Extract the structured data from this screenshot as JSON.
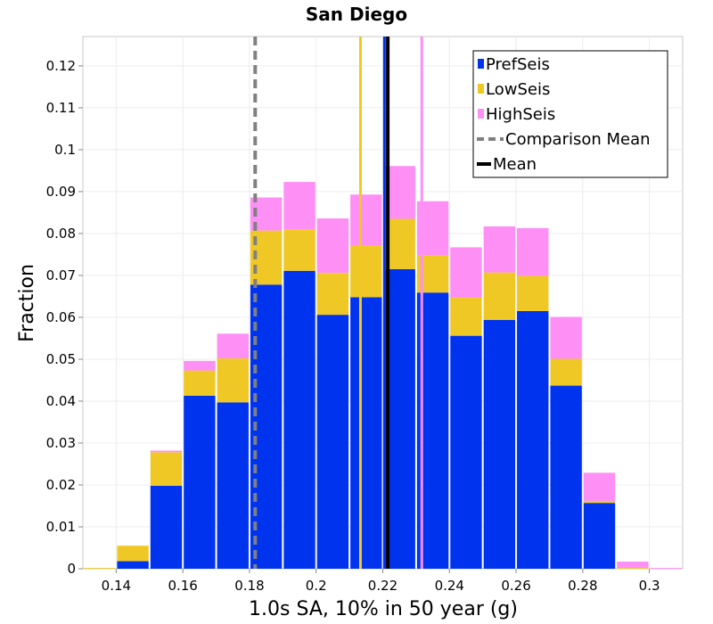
{
  "chart_data": {
    "type": "bar",
    "stacked": true,
    "title": "San Diego",
    "xlabel": "1.0s SA, 10% in 50 year (g)",
    "ylabel": "Fraction",
    "xlim": [
      0.13,
      0.31
    ],
    "ylim": [
      0,
      0.127
    ],
    "bin_width": 0.01,
    "x_ticks": [
      "0.14",
      "0.16",
      "0.18",
      "0.2",
      "0.22",
      "0.24",
      "0.26",
      "0.28",
      "0.3"
    ],
    "y_ticks": [
      "0",
      "0.01",
      "0.02",
      "0.03",
      "0.04",
      "0.05",
      "0.06",
      "0.07",
      "0.08",
      "0.09",
      "0.1",
      "0.11",
      "0.12"
    ],
    "bin_centers": [
      0.135,
      0.145,
      0.155,
      0.165,
      0.175,
      0.185,
      0.195,
      0.205,
      0.215,
      0.225,
      0.235,
      0.245,
      0.255,
      0.265,
      0.275,
      0.285,
      0.295,
      0.305
    ],
    "series": [
      {
        "name": "PrefSeis",
        "color": "#0033ee",
        "values": [
          0.0,
          0.0018,
          0.0198,
          0.0413,
          0.0397,
          0.0678,
          0.0711,
          0.0606,
          0.0648,
          0.0715,
          0.0659,
          0.0556,
          0.0594,
          0.0615,
          0.0437,
          0.0157,
          0.0,
          0.0
        ]
      },
      {
        "name": "LowSeis",
        "color": "#f0c825",
        "values": [
          0.0002,
          0.0037,
          0.008,
          0.006,
          0.0105,
          0.0129,
          0.0099,
          0.01,
          0.0123,
          0.012,
          0.0089,
          0.0091,
          0.0113,
          0.0084,
          0.0064,
          0.0005,
          0.0002,
          0.0
        ]
      },
      {
        "name": "HighSeis",
        "color": "#fd8ff5",
        "values": [
          0.0,
          0.0,
          0.0004,
          0.0023,
          0.0059,
          0.0079,
          0.0113,
          0.013,
          0.0122,
          0.0126,
          0.0129,
          0.012,
          0.011,
          0.0114,
          0.01,
          0.0067,
          0.0015,
          0.0002
        ]
      }
    ],
    "vertical_lines": [
      {
        "name": "Comparison Mean",
        "x": 0.1817,
        "color": "#808080",
        "style": "dashed"
      },
      {
        "name": "Mean",
        "x": 0.2215,
        "color": "#000000",
        "style": "solid"
      },
      {
        "name": "LowSeis Mean",
        "x": 0.2133,
        "color": "#f0c825",
        "style": "solid",
        "in_legend": false
      },
      {
        "name": "PrefSeis Mean",
        "x": 0.2205,
        "color": "#0033ee",
        "style": "solid",
        "in_legend": false
      },
      {
        "name": "HighSeis Mean",
        "x": 0.2317,
        "color": "#fd8ff5",
        "style": "solid",
        "in_legend": false
      }
    ],
    "legend": {
      "position": "top-right",
      "entries": [
        {
          "label": "PrefSeis",
          "kind": "box",
          "color": "#0033ee"
        },
        {
          "label": "LowSeis",
          "kind": "box",
          "color": "#f0c825"
        },
        {
          "label": "HighSeis",
          "kind": "box",
          "color": "#fd8ff5"
        },
        {
          "label": "Comparison Mean",
          "kind": "dashed",
          "color": "#808080"
        },
        {
          "label": "Mean",
          "kind": "line",
          "color": "#000000"
        }
      ]
    },
    "grid": true
  }
}
